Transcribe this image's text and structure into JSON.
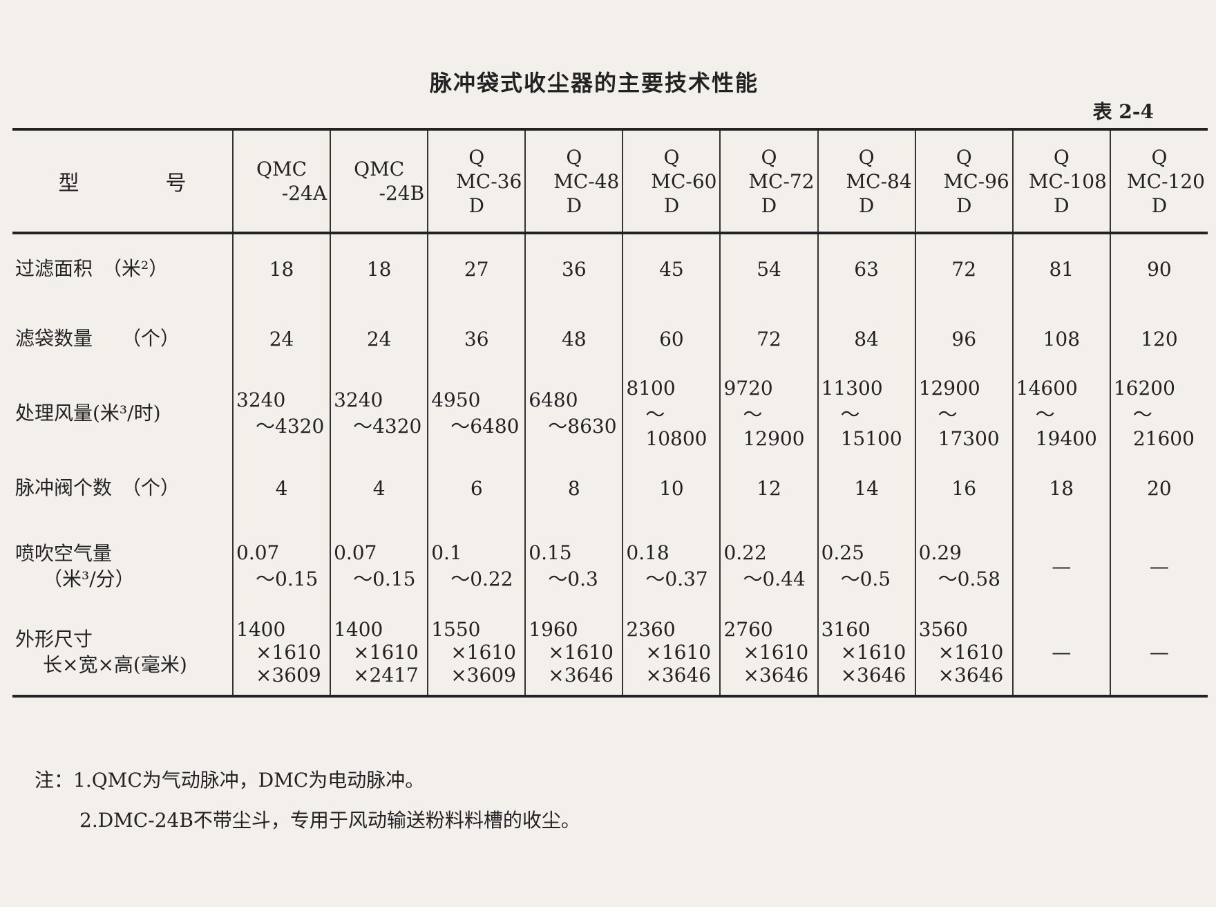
{
  "header": {
    "title": "脉冲袋式收尘器的主要技术性能",
    "table_no": "表 2-4"
  },
  "table": {
    "corner": [
      "型",
      "号"
    ],
    "columns": [
      [
        "QMC",
        "-24A"
      ],
      [
        "QMC",
        "-24B"
      ],
      [
        "Q",
        "MC-36",
        "D"
      ],
      [
        "Q",
        "MC-48",
        "D"
      ],
      [
        "Q",
        "MC-60",
        "D"
      ],
      [
        "Q",
        "MC-72",
        "D"
      ],
      [
        "Q",
        "MC-84",
        "D"
      ],
      [
        "Q",
        "MC-96",
        "D"
      ],
      [
        "Q",
        "MC-108",
        "D"
      ],
      [
        "Q",
        "MC-120",
        "D"
      ]
    ],
    "rows": [
      {
        "label": [
          "过滤面积　（米²）"
        ],
        "cells": [
          [
            "18"
          ],
          [
            "18"
          ],
          [
            "27"
          ],
          [
            "36"
          ],
          [
            "45"
          ],
          [
            "54"
          ],
          [
            "63"
          ],
          [
            "72"
          ],
          [
            "81"
          ],
          [
            "90"
          ]
        ]
      },
      {
        "label": [
          "滤袋数量　　（个）"
        ],
        "cells": [
          [
            "24"
          ],
          [
            "24"
          ],
          [
            "36"
          ],
          [
            "48"
          ],
          [
            "60"
          ],
          [
            "72"
          ],
          [
            "84"
          ],
          [
            "96"
          ],
          [
            "108"
          ],
          [
            "120"
          ]
        ]
      },
      {
        "label": [
          "处理风量(米³/时)"
        ],
        "cells": [
          [
            "3240",
            "～4320"
          ],
          [
            "3240",
            "～4320"
          ],
          [
            "4950",
            "～6480"
          ],
          [
            "6480",
            "～8630"
          ],
          [
            "8100",
            "～10800"
          ],
          [
            "9720",
            "～12900"
          ],
          [
            "11300",
            "～15100"
          ],
          [
            "12900",
            "～17300"
          ],
          [
            "14600",
            "～19400"
          ],
          [
            "16200",
            "～21600"
          ]
        ]
      },
      {
        "label": [
          "脉冲阀个数　（个）"
        ],
        "cells": [
          [
            "4"
          ],
          [
            "4"
          ],
          [
            "6"
          ],
          [
            "8"
          ],
          [
            "10"
          ],
          [
            "12"
          ],
          [
            "14"
          ],
          [
            "16"
          ],
          [
            "18"
          ],
          [
            "20"
          ]
        ]
      },
      {
        "label": [
          "喷吹空气量",
          "（米³/分）"
        ],
        "cells": [
          [
            "0.07",
            "～0.15"
          ],
          [
            "0.07",
            "～0.15"
          ],
          [
            "0.1",
            "～0.22"
          ],
          [
            "0.15",
            "～0.3"
          ],
          [
            "0.18",
            "～0.37"
          ],
          [
            "0.22",
            "～0.44"
          ],
          [
            "0.25",
            "～0.5"
          ],
          [
            "0.29",
            "～0.58"
          ],
          [
            "—"
          ],
          [
            "—"
          ]
        ]
      },
      {
        "label": [
          "外形尺寸",
          "长×宽×高(毫米)"
        ],
        "cells": [
          [
            "1400",
            "×1610",
            "×3609"
          ],
          [
            "1400",
            "×1610",
            "×2417"
          ],
          [
            "1550",
            "×1610",
            "×3609"
          ],
          [
            "1960",
            "×1610",
            "×3646"
          ],
          [
            "2360",
            "×1610",
            "×3646"
          ],
          [
            "2760",
            "×1610",
            "×3646"
          ],
          [
            "3160",
            "×1610",
            "×3646"
          ],
          [
            "3560",
            "×1610",
            "×3646"
          ],
          [
            "—"
          ],
          [
            "—"
          ]
        ]
      }
    ]
  },
  "notes": [
    "注：1.QMC为气动脉冲，DMC为电动脉冲。",
    "2.DMC-24B不带尘斗，专用于风动输送粉料料槽的收尘。"
  ]
}
